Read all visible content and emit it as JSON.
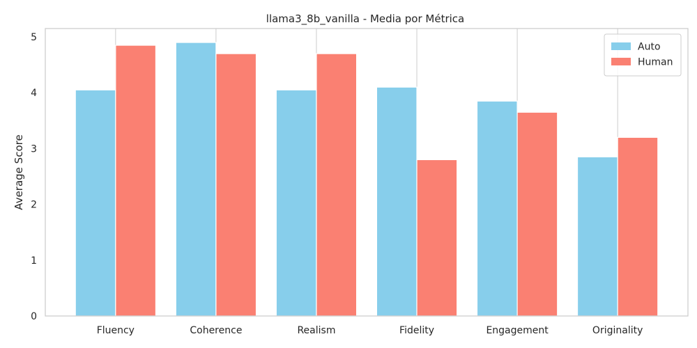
{
  "chart_data": {
    "type": "bar",
    "title": "llama3_8b_vanilla - Media por Métrica",
    "xlabel": "",
    "ylabel": "Average Score",
    "categories": [
      "Fluency",
      "Coherence",
      "Realism",
      "Fidelity",
      "Engagement",
      "Originality"
    ],
    "series": [
      {
        "name": "Auto",
        "values": [
          4.05,
          4.9,
          4.05,
          4.1,
          3.85,
          2.85
        ],
        "color": "#87ceeb"
      },
      {
        "name": "Human",
        "values": [
          4.85,
          4.7,
          4.7,
          2.8,
          3.65,
          3.2
        ],
        "color": "#fa8072"
      }
    ],
    "yticks": [
      0,
      1,
      2,
      3,
      4,
      5
    ],
    "ylim": [
      0,
      5.15
    ],
    "grid": "vertical",
    "legend": "top-right"
  }
}
